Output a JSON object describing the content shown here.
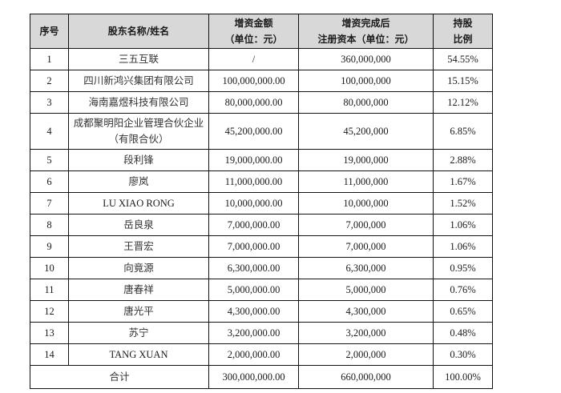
{
  "table": {
    "headers": {
      "index": "序号",
      "name": "股东名称/姓名",
      "increase_line1": "增资金额",
      "increase_line2": "（单位：元）",
      "after_line1": "增资完成后",
      "after_line2": "注册资本（单位：元）",
      "ratio_line1": "持股",
      "ratio_line2": "比例"
    },
    "rows": [
      {
        "index": "1",
        "name": "三五互联",
        "increase": "/",
        "registered_capital": "360,000,000",
        "ratio": "54.55%"
      },
      {
        "index": "2",
        "name": "四川新鸿兴集团有限公司",
        "increase": "100,000,000.00",
        "registered_capital": "100,000,000",
        "ratio": "15.15%"
      },
      {
        "index": "3",
        "name": "海南嘉煜科技有限公司",
        "increase": "80,000,000.00",
        "registered_capital": "80,000,000",
        "ratio": "12.12%"
      },
      {
        "index": "4",
        "name": "成都聚明阳企业管理合伙企业",
        "name_line2": "（有限合伙）",
        "increase": "45,200,000.00",
        "registered_capital": "45,200,000",
        "ratio": "6.85%"
      },
      {
        "index": "5",
        "name": "段利锋",
        "increase": "19,000,000.00",
        "registered_capital": "19,000,000",
        "ratio": "2.88%"
      },
      {
        "index": "6",
        "name": "廖岚",
        "increase": "11,000,000.00",
        "registered_capital": "11,000,000",
        "ratio": "1.67%"
      },
      {
        "index": "7",
        "name": "LU XIAO RONG",
        "increase": "10,000,000.00",
        "registered_capital": "10,000,000",
        "ratio": "1.52%"
      },
      {
        "index": "8",
        "name": "岳良泉",
        "increase": "7,000,000.00",
        "registered_capital": "7,000,000",
        "ratio": "1.06%"
      },
      {
        "index": "9",
        "name": "王晋宏",
        "increase": "7,000,000.00",
        "registered_capital": "7,000,000",
        "ratio": "1.06%"
      },
      {
        "index": "10",
        "name": "向竟源",
        "increase": "6,300,000.00",
        "registered_capital": "6,300,000",
        "ratio": "0.95%"
      },
      {
        "index": "11",
        "name": "唐春祥",
        "increase": "5,000,000.00",
        "registered_capital": "5,000,000",
        "ratio": "0.76%"
      },
      {
        "index": "12",
        "name": "唐光平",
        "increase": "4,300,000.00",
        "registered_capital": "4,300,000",
        "ratio": "0.65%"
      },
      {
        "index": "13",
        "name": "苏宁",
        "increase": "3,200,000.00",
        "registered_capital": "3,200,000",
        "ratio": "0.48%"
      },
      {
        "index": "14",
        "name": "TANG XUAN",
        "increase": "2,000,000.00",
        "registered_capital": "2,000,000",
        "ratio": "0.30%"
      }
    ],
    "total": {
      "label": "合计",
      "increase": "300,000,000.00",
      "registered_capital": "660,000,000",
      "ratio": "100.00%"
    },
    "colors": {
      "header_bg": "#d8d8d8",
      "border": "#111111"
    }
  }
}
